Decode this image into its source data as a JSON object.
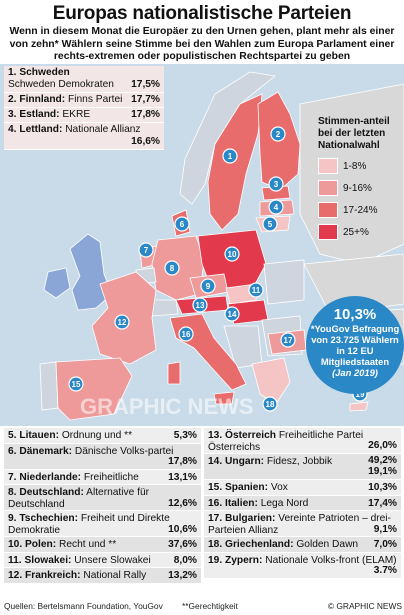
{
  "title": "Europas nationalistische Parteien",
  "subtitle": "Wenn in diesem Monat die Europäer zu den Urnen gehen, plant mehr als einer von zehn* Wählern seine Stimme bei den Wahlen zum Europa Parlament einer rechts-extremen oder populistischen Rechtspartei zu geben",
  "legend": {
    "title": "Stimmen-anteil bei der letzten Nationalwahl",
    "items": [
      {
        "label": "1-8%",
        "color": "#f5c4c4"
      },
      {
        "label": "9-16%",
        "color": "#ee9a9a"
      },
      {
        "label": "17-24%",
        "color": "#e86c6c"
      },
      {
        "label": "25+%",
        "color": "#e23a4c"
      }
    ]
  },
  "callout": {
    "value": "10,3%",
    "text": "*YouGov Befragung von 23.725 Wählern in 12 EU Mitgliedstaaten",
    "date": "(Jan 2019)"
  },
  "watermark": "GRAPHIC NEWS",
  "countries_top": [
    {
      "rank": "1.",
      "country": "Schweden",
      "party": "Schweden Demokraten",
      "pct": "17,5%"
    },
    {
      "rank": "2.",
      "country": "Finnland:",
      "party": "Finns Partei",
      "pct": "17,7%"
    },
    {
      "rank": "3.",
      "country": "Estland:",
      "party": "EKRE",
      "pct": "17,8%"
    },
    {
      "rank": "4.",
      "country": "Lettland:",
      "party": "Nationale Allianz",
      "pct": "16,6%"
    }
  ],
  "countries_left": [
    {
      "rank": "5.",
      "country": "Litauen:",
      "party": "Ordnung und **",
      "pct": "5,3%"
    },
    {
      "rank": "6.",
      "country": "Dänemark:",
      "party": "Dänische Volks-partei",
      "pct": "17,8%"
    },
    {
      "rank": "7.",
      "country": "Niederlande:",
      "party": "Freiheitliche",
      "pct": "13,1%"
    },
    {
      "rank": "8.",
      "country": "Deutschland:",
      "party": "Alternative für Deutschland",
      "pct": "12,6%"
    },
    {
      "rank": "9.",
      "country": "Tschechien:",
      "party": "Freiheit und Direkte Demokratie",
      "pct": "10,6%"
    },
    {
      "rank": "10.",
      "country": "Polen:",
      "party": "Recht und **",
      "pct": "37,6%"
    },
    {
      "rank": "11.",
      "country": "Slowakei:",
      "party": "Unsere Slowakei",
      "pct": "8,0%"
    },
    {
      "rank": "12.",
      "country": "Frankreich:",
      "party": "National Rally",
      "pct": "13,2%"
    }
  ],
  "countries_right": [
    {
      "rank": "13.",
      "country": "Österreich",
      "party": "Freiheitliche Partei Österreichs",
      "pct": "26,0%"
    },
    {
      "rank": "14.",
      "country": "Ungarn:",
      "party": "Fidesz, Jobbik",
      "pct": "49,2%\n19,1%"
    },
    {
      "rank": "15.",
      "country": "Spanien:",
      "party": "Vox",
      "pct": "10,3%"
    },
    {
      "rank": "16.",
      "country": "Italien:",
      "party": "Lega Nord",
      "pct": "17,4%"
    },
    {
      "rank": "17.",
      "country": "Bulgarien:",
      "party": "Vereinte Patrioten – drei-Parteien Allianz",
      "pct": "9,1%"
    },
    {
      "rank": "18.",
      "country": "Griechenland:",
      "party": "Golden Dawn",
      "pct": "7,0%"
    },
    {
      "rank": "19.",
      "country": "Zypern:",
      "party": "Nationale Volks-front (ELAM)",
      "pct": "3.7%"
    }
  ],
  "footer": {
    "sources": "Quellen: Bertelsmann Foundation, YouGov",
    "note": "**Gerechtigkeit",
    "copyright": "© GRAPHIC NEWS"
  }
}
